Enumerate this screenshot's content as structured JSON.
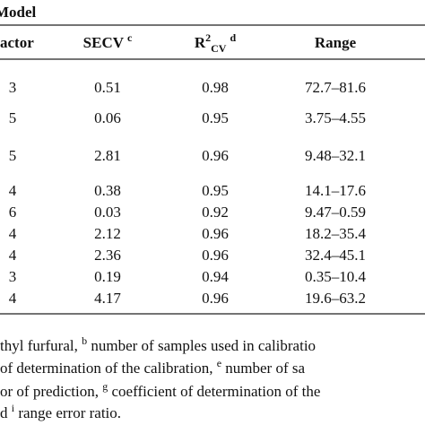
{
  "header": {
    "title": "Model"
  },
  "table": {
    "columns": [
      [
        {
          "text": "actor"
        }
      ],
      [
        {
          "text": "SECV"
        },
        {
          "text": "c",
          "pos": "sup"
        }
      ],
      [
        {
          "text": "R"
        },
        {
          "text": "2",
          "pos": "sup"
        },
        {
          "text": "CV",
          "pos": "sub"
        },
        {
          "text": "d",
          "pos": "sup"
        }
      ],
      [
        {
          "text": "Range"
        }
      ]
    ],
    "rows": [
      [
        "3",
        "0.51",
        "0.98",
        "72.7–81.6"
      ],
      [
        "5",
        "0.06",
        "0.95",
        "3.75–4.55"
      ],
      [
        "5",
        "2.81",
        "0.96",
        "9.48–32.1"
      ],
      [
        "4",
        "0.38",
        "0.95",
        "14.1–17.6"
      ],
      [
        "6",
        "0.03",
        "0.92",
        "9.47–0.59"
      ],
      [
        "4",
        "2.12",
        "0.96",
        "18.2–35.4"
      ],
      [
        "4",
        "2.36",
        "0.96",
        "32.4–45.1"
      ],
      [
        "3",
        "0.19",
        "0.94",
        "0.35–10.4"
      ],
      [
        "4",
        "4.17",
        "0.96",
        "19.6–63.2"
      ]
    ]
  },
  "footnotes": [
    [
      {
        "text": "thyl furfural, "
      },
      {
        "text": "b",
        "pos": "sup"
      },
      {
        "text": " number of samples used in calibratio"
      }
    ],
    [
      {
        "text": "of determination of the calibration, "
      },
      {
        "text": "e",
        "pos": "sup"
      },
      {
        "text": " number of sa"
      }
    ],
    [
      {
        "text": "or of prediction, "
      },
      {
        "text": "g",
        "pos": "sup"
      },
      {
        "text": " coefficient of determination of the"
      }
    ],
    [
      {
        "text": "d "
      },
      {
        "text": "i",
        "pos": "sup"
      },
      {
        "text": " range error ratio."
      }
    ]
  ]
}
